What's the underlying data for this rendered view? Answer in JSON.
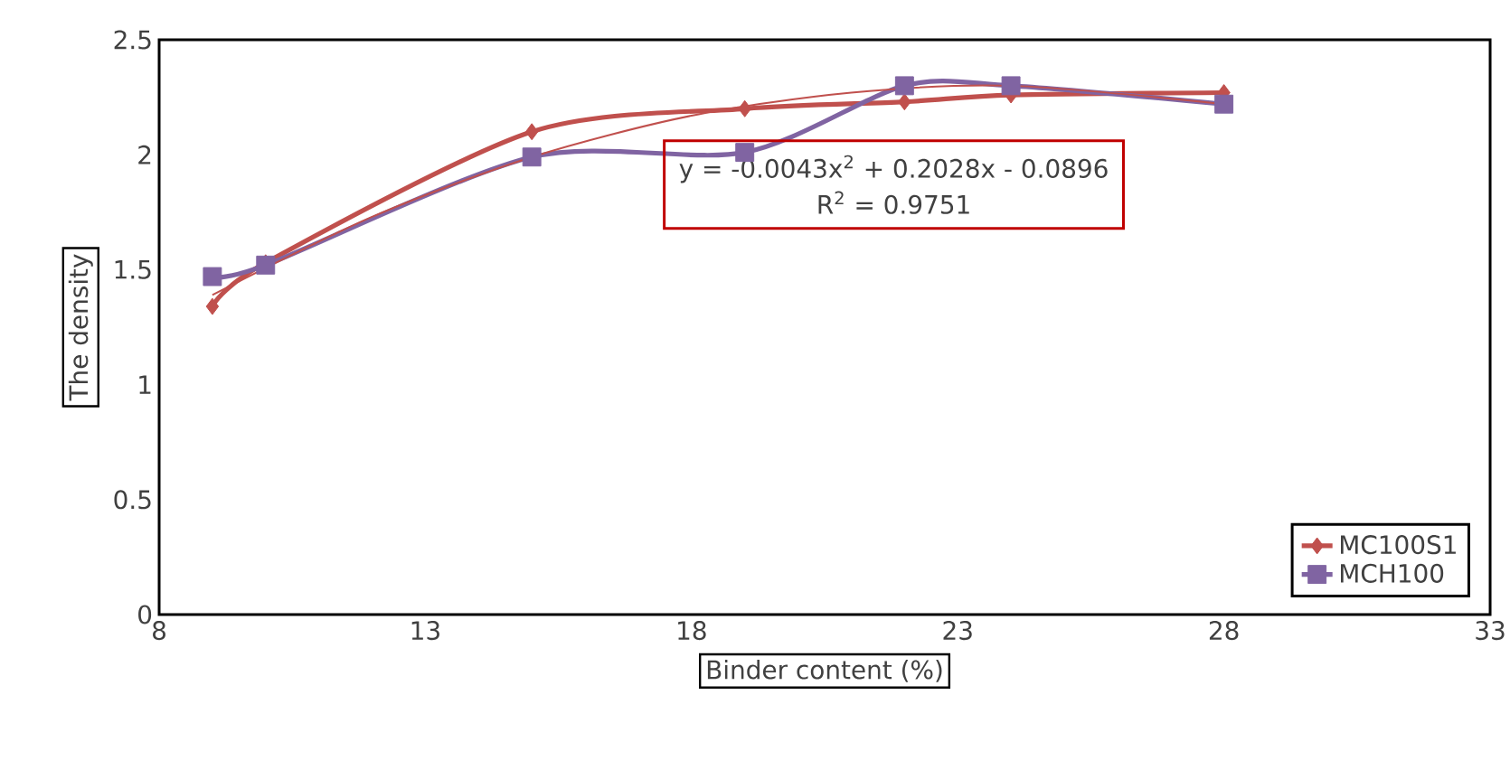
{
  "chart_data": {
    "type": "line",
    "xlabel": "Binder content (%)",
    "ylabel": "The  density",
    "xlim": [
      8,
      33
    ],
    "xticks": [
      8,
      13,
      18,
      23,
      28,
      33
    ],
    "ylim": [
      0,
      2.5
    ],
    "yticks": [
      0,
      0.5,
      1,
      1.5,
      2,
      2.5
    ],
    "grid": false,
    "legend": "bottom right",
    "series": [
      {
        "name": "MC100S1",
        "color": "#c0504d",
        "marker": "diamond",
        "x": [
          9,
          10,
          15,
          19,
          22,
          24,
          28
        ],
        "values": [
          1.34,
          1.53,
          2.1,
          2.2,
          2.23,
          2.26,
          2.27
        ]
      },
      {
        "name": "MCH100",
        "color": "#8064a2",
        "marker": "square",
        "x": [
          9,
          10,
          15,
          19,
          22,
          24,
          28
        ],
        "values": [
          1.47,
          1.52,
          1.99,
          2.01,
          2.3,
          2.3,
          2.22
        ]
      },
      {
        "color": "#c0504d",
        "marker": "none",
        "line_style": "solid",
        "x": [
          9,
          12,
          15,
          18,
          21,
          24,
          28
        ],
        "values": [
          1.39,
          1.73,
          1.99,
          2.17,
          2.27,
          2.3,
          2.22
        ]
      }
    ],
    "annotations": [
      "y = -0.0043x$^{2}$ + 0.2028x - 0.0896",
      "R$^{2}$ = 0.9751"
    ]
  }
}
